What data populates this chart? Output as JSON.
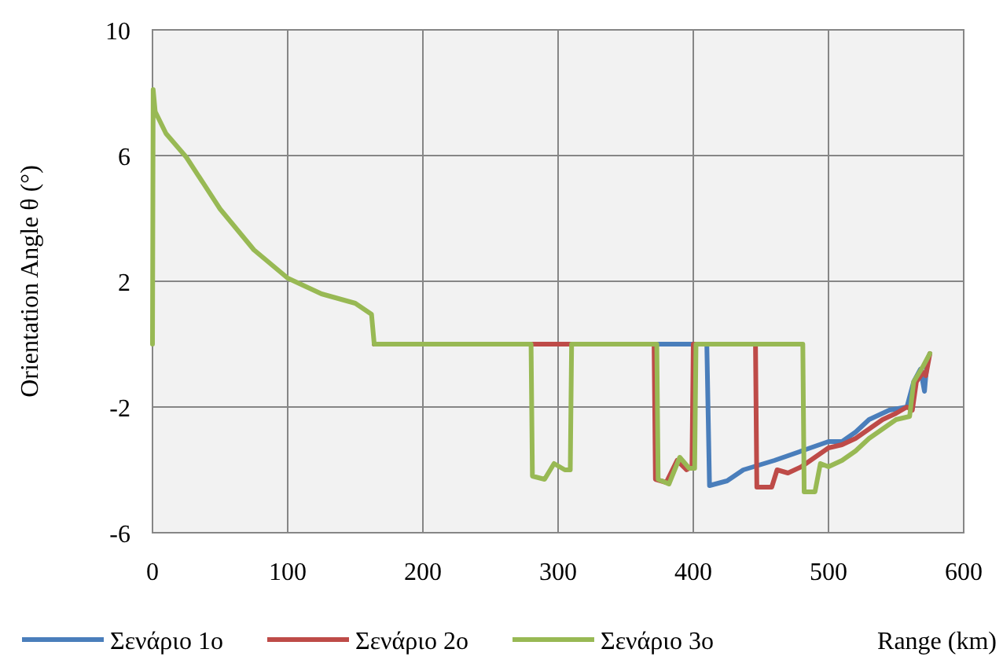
{
  "chart_data": {
    "type": "line",
    "xlabel": "Range (km)",
    "ylabel": "Orientation Angle θ (°)",
    "xlim": [
      0,
      600
    ],
    "xticks": [
      0,
      100,
      200,
      300,
      400,
      500,
      600
    ],
    "ylim": [
      -6,
      10
    ],
    "yticks": [
      -6,
      -2,
      2,
      6,
      10
    ],
    "grid": true,
    "legend": "bottom",
    "marker": "none",
    "line_style": "solid",
    "series": [
      {
        "name": "Σενάριο 1ο",
        "color": "#4a7ebb",
        "x": [
          164,
          410,
          412,
          425,
          437,
          460,
          480,
          500,
          510,
          520,
          530,
          545,
          558,
          563,
          568,
          571,
          573,
          575
        ],
        "values": [
          0,
          0,
          -4.5,
          -4.35,
          -4.0,
          -3.7,
          -3.4,
          -3.1,
          -3.1,
          -2.8,
          -2.4,
          -2.1,
          -2.0,
          -1.2,
          -0.8,
          -1.5,
          -0.5,
          -0.3
        ]
      },
      {
        "name": "Σενάριο 2ο",
        "color": "#be4b48",
        "x": [
          164,
          371,
          372,
          380,
          388,
          395,
          399,
          400,
          446,
          447,
          458,
          462,
          470,
          480,
          490,
          500,
          510,
          520,
          530,
          540,
          550,
          558,
          562,
          565,
          570,
          572,
          575
        ],
        "values": [
          0,
          0,
          -4.3,
          -4.4,
          -3.7,
          -4.0,
          -3.9,
          0,
          0,
          -4.55,
          -4.55,
          -4.0,
          -4.1,
          -3.9,
          -3.6,
          -3.3,
          -3.2,
          -3.0,
          -2.7,
          -2.4,
          -2.2,
          -2.0,
          -2.1,
          -1.2,
          -0.9,
          -1.0,
          -0.3
        ]
      },
      {
        "name": "Σενάριο 3ο",
        "color": "#98b954",
        "x": [
          0,
          0.5,
          2,
          10,
          25,
          50,
          75,
          100,
          125,
          150,
          162,
          164,
          280,
          281,
          290,
          297,
          305,
          309,
          310,
          373,
          374,
          382,
          390,
          397,
          401,
          402,
          481,
          482,
          490,
          494,
          500,
          510,
          520,
          530,
          540,
          550,
          560,
          563,
          570,
          575
        ],
        "values": [
          0,
          8.1,
          7.4,
          6.7,
          5.95,
          4.3,
          3.0,
          2.1,
          1.6,
          1.3,
          0.95,
          0,
          0,
          -4.2,
          -4.3,
          -3.8,
          -4.0,
          -4.0,
          0,
          0,
          -4.3,
          -4.45,
          -3.6,
          -3.95,
          -3.95,
          0,
          0,
          -4.7,
          -4.7,
          -3.8,
          -3.9,
          -3.7,
          -3.4,
          -3.0,
          -2.7,
          -2.4,
          -2.3,
          -1.2,
          -0.7,
          -0.3
        ]
      }
    ]
  }
}
